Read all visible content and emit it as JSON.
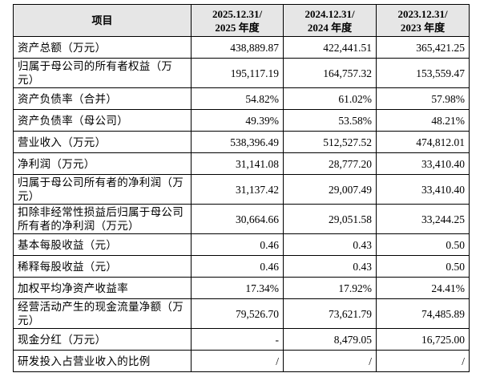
{
  "table": {
    "header": [
      [
        "项目"
      ],
      [
        "2025.12.31/",
        "2025 年度"
      ],
      [
        "2024.12.31/",
        "2024 年度"
      ],
      [
        "2023.12.31/",
        "2023 年度"
      ]
    ],
    "rows": [
      [
        "资产总额（万元）",
        "438,889.87",
        "422,441.51",
        "365,421.25"
      ],
      [
        "归属于母公司的所有者权益（万元）",
        "195,117.19",
        "164,757.32",
        "153,559.47"
      ],
      [
        "资产负债率（合并）",
        "54.82%",
        "61.02%",
        "57.98%"
      ],
      [
        "资产负债率（母公司）",
        "49.39%",
        "53.58%",
        "48.21%"
      ],
      [
        "营业收入（万元）",
        "538,396.49",
        "512,527.52",
        "474,812.01"
      ],
      [
        "净利润（万元）",
        "31,141.08",
        "28,777.20",
        "33,410.40"
      ],
      [
        "归属于母公司所有者的净利润（万元）",
        "31,137.42",
        "29,007.49",
        "33,410.40"
      ],
      [
        "扣除非经常性损益后归属于母公司所有者的净利润（万元）",
        "30,664.66",
        "29,051.58",
        "33,244.25"
      ],
      [
        "基本每股收益（元）",
        "0.46",
        "0.43",
        "0.50"
      ],
      [
        "稀释每股收益（元）",
        "0.46",
        "0.43",
        "0.50"
      ],
      [
        "加权平均净资产收益率",
        "17.34%",
        "17.92%",
        "24.41%"
      ],
      [
        "经营活动产生的现金流量净额（万元）",
        "79,526.70",
        "73,621.79",
        "74,485.89"
      ],
      [
        "现金分红（万元）",
        "-",
        "8,479.05",
        "16,725.00"
      ],
      [
        "研发投入占营业收入的比例",
        "/",
        "/",
        "/"
      ]
    ]
  }
}
